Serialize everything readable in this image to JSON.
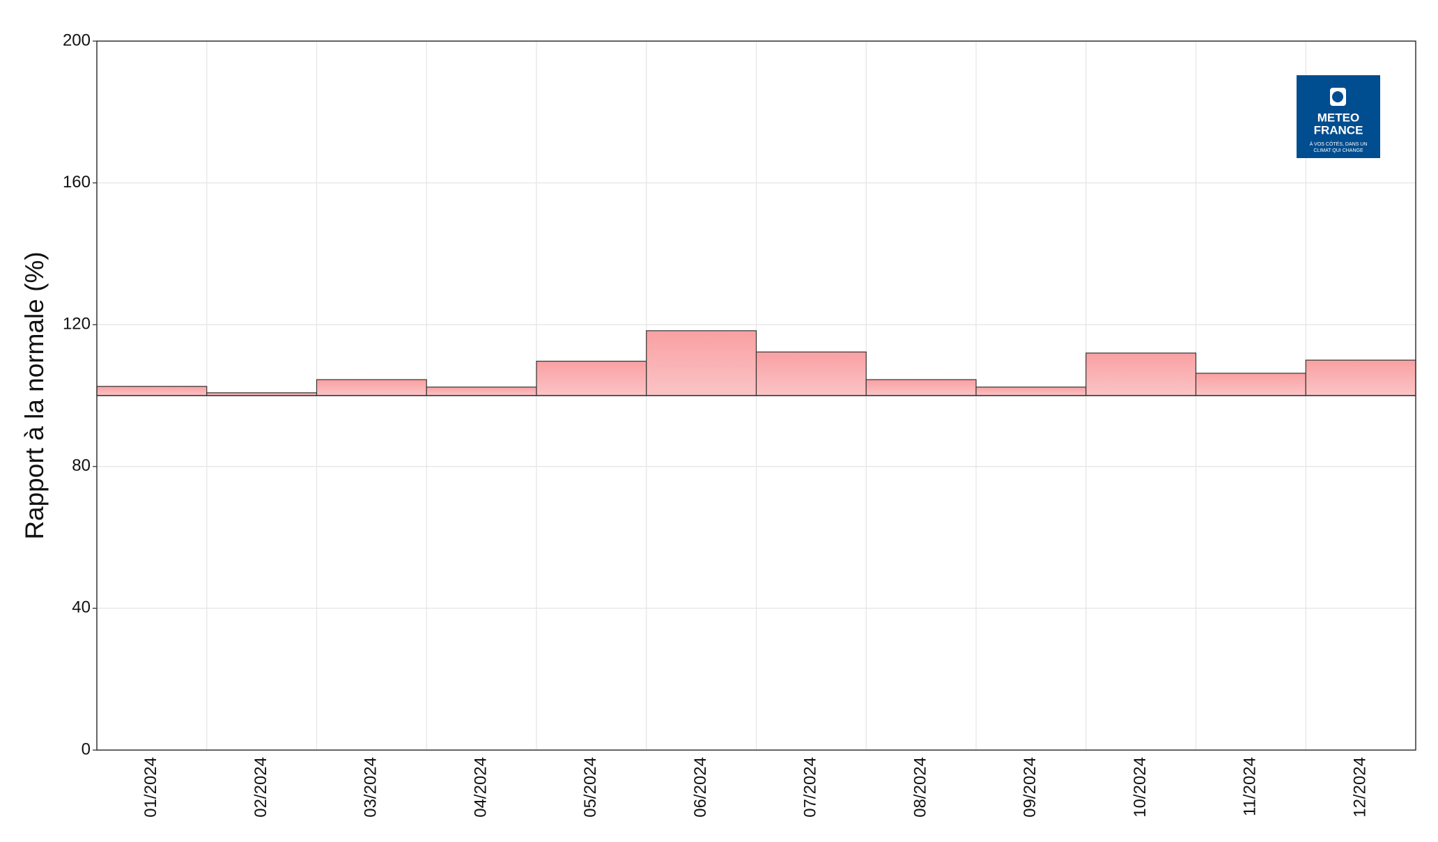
{
  "chart_data": {
    "type": "bar",
    "y_label": "Rapport à la normale (%)",
    "categories": [
      "01/2024",
      "02/2024",
      "03/2024",
      "04/2024",
      "05/2024",
      "06/2024",
      "07/2024",
      "08/2024",
      "09/2024",
      "10/2024",
      "11/2024",
      "12/2024"
    ],
    "values": [
      102.6,
      100.8,
      104.5,
      102.4,
      109.7,
      118.3,
      112.3,
      104.5,
      102.4,
      112.0,
      106.3,
      110.0
    ],
    "color": "#f9b0b0",
    "baseline": 100,
    "ylim": [
      0,
      200
    ],
    "yticks": [
      0,
      40,
      80,
      120,
      160,
      200
    ],
    "grid": true,
    "logo": {
      "line1": "METEO",
      "line2": "FRANCE",
      "tagline1": "À VOS CÔTÉS, DANS UN",
      "tagline2": "CLIMAT QUI CHANGE"
    }
  }
}
